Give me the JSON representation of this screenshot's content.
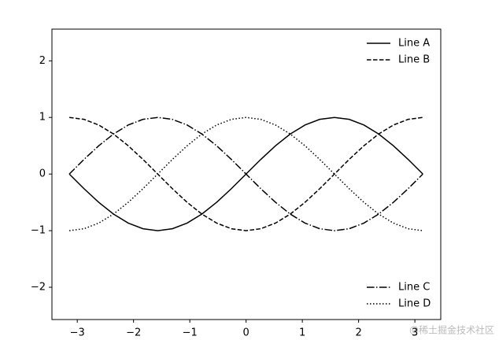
{
  "chart_data": {
    "type": "line",
    "x": [
      -3.1416,
      -2.8798,
      -2.618,
      -2.3562,
      -2.0944,
      -1.8326,
      -1.5708,
      -1.309,
      -1.0472,
      -0.7854,
      -0.5236,
      -0.2618,
      0,
      0.2618,
      0.5236,
      0.7854,
      1.0472,
      1.309,
      1.5708,
      1.8326,
      2.0944,
      2.3562,
      2.618,
      2.8798,
      3.1416
    ],
    "series": [
      {
        "name": "Line A",
        "color": "#000000",
        "linestyle": "solid",
        "legend": "upper right",
        "values": [
          0,
          -0.2588,
          -0.5,
          -0.7071,
          -0.866,
          -0.9659,
          -1,
          -0.9659,
          -0.866,
          -0.7071,
          -0.5,
          -0.2588,
          0,
          0.2588,
          0.5,
          0.7071,
          0.866,
          0.9659,
          1,
          0.9659,
          0.866,
          0.7071,
          0.5,
          0.2588,
          0
        ]
      },
      {
        "name": "Line B",
        "color": "#000000",
        "linestyle": "dashed",
        "legend": "upper right",
        "values": [
          1,
          0.9659,
          0.866,
          0.7071,
          0.5,
          0.2588,
          0,
          -0.2588,
          -0.5,
          -0.7071,
          -0.866,
          -0.9659,
          -1,
          -0.9659,
          -0.866,
          -0.7071,
          -0.5,
          -0.2588,
          0,
          0.2588,
          0.5,
          0.7071,
          0.866,
          0.9659,
          1
        ]
      },
      {
        "name": "Line C",
        "color": "#000000",
        "linestyle": "dashdot",
        "legend": "lower right",
        "values": [
          0,
          0.2588,
          0.5,
          0.7071,
          0.866,
          0.9659,
          1,
          0.9659,
          0.866,
          0.7071,
          0.5,
          0.2588,
          0,
          -0.2588,
          -0.5,
          -0.7071,
          -0.866,
          -0.9659,
          -1,
          -0.9659,
          -0.866,
          -0.7071,
          -0.5,
          -0.2588,
          0
        ]
      },
      {
        "name": "Line D",
        "color": "#000000",
        "linestyle": "dotted",
        "legend": "lower right",
        "values": [
          -1,
          -0.9659,
          -0.866,
          -0.7071,
          -0.5,
          -0.2588,
          0,
          0.2588,
          0.5,
          0.7071,
          0.866,
          0.9659,
          1,
          0.9659,
          0.866,
          0.7071,
          0.5,
          0.2588,
          0,
          -0.2588,
          -0.5,
          -0.7071,
          -0.866,
          -0.9659,
          -1
        ]
      }
    ],
    "xlim": [
      -3.45,
      3.46
    ],
    "ylim": [
      -2.57,
      2.56
    ],
    "xticks": [
      {
        "value": -3,
        "label": "−3"
      },
      {
        "value": -2,
        "label": "−2"
      },
      {
        "value": -1,
        "label": "−1"
      },
      0,
      1,
      2,
      3
    ],
    "yticks": [
      {
        "value": -2,
        "label": "−2"
      },
      {
        "value": -1,
        "label": "−1"
      },
      0,
      1,
      2
    ],
    "watermark": "@稀土掘金技术社区"
  }
}
